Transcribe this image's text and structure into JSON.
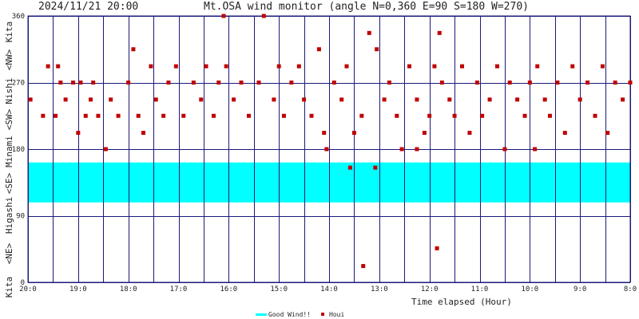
{
  "header": {
    "datetime": "2024/11/21 20:00",
    "title": "Mt.OSA wind monitor (angle N=0,360 E=90 S=180 W=270)"
  },
  "left_labels": [
    "Kita",
    "<NW>",
    "Nishi",
    "<SW>",
    "Minami",
    "<SE>",
    "Higashi",
    "<NE>",
    "Kita"
  ],
  "chart_data": {
    "type": "scatter",
    "title": "Mt.OSA wind monitor (angle N=0,360 E=90 S=180 W=270)",
    "xlabel": "Time elapsed (Hour)",
    "ylabel": "",
    "xlim": [
      0,
      12
    ],
    "ylim": [
      0,
      360
    ],
    "x_ticks": [
      {
        "x": 0,
        "label": "20:0"
      },
      {
        "x": 1,
        "label": "19:0"
      },
      {
        "x": 2,
        "label": "18:0"
      },
      {
        "x": 3,
        "label": "17:0"
      },
      {
        "x": 4,
        "label": "16:0"
      },
      {
        "x": 5,
        "label": "15:0"
      },
      {
        "x": 6,
        "label": "14:0"
      },
      {
        "x": 7,
        "label": "13:0"
      },
      {
        "x": 8,
        "label": "12:0"
      },
      {
        "x": 9,
        "label": "11:0"
      },
      {
        "x": 10,
        "label": "10:0"
      },
      {
        "x": 11,
        "label": "9:0"
      },
      {
        "x": 12,
        "label": "8:0"
      }
    ],
    "y_ticks": [
      0,
      90,
      180,
      270,
      360
    ],
    "grid": true,
    "good_wind_band": [
      108,
      162
    ],
    "colors": {
      "good_wind": "#00ffff",
      "houi": "#c00000",
      "grid": "#1a1a7a"
    },
    "legend": {
      "placement": "bottom-center",
      "entries": [
        "Good Wind!!",
        "Houi"
      ]
    },
    "series": [
      {
        "name": "Houi",
        "points": [
          [
            0.05,
            247
          ],
          [
            0.3,
            225
          ],
          [
            0.4,
            292
          ],
          [
            0.55,
            225
          ],
          [
            0.6,
            292
          ],
          [
            0.65,
            270
          ],
          [
            0.75,
            247
          ],
          [
            0.9,
            270
          ],
          [
            1.0,
            202
          ],
          [
            1.05,
            270
          ],
          [
            1.15,
            225
          ],
          [
            1.25,
            247
          ],
          [
            1.3,
            270
          ],
          [
            1.4,
            225
          ],
          [
            1.55,
            180
          ],
          [
            1.65,
            247
          ],
          [
            1.8,
            225
          ],
          [
            2.0,
            270
          ],
          [
            2.1,
            315
          ],
          [
            2.2,
            225
          ],
          [
            2.3,
            202
          ],
          [
            2.45,
            292
          ],
          [
            2.55,
            247
          ],
          [
            2.7,
            225
          ],
          [
            2.8,
            270
          ],
          [
            2.95,
            292
          ],
          [
            3.1,
            225
          ],
          [
            3.3,
            270
          ],
          [
            3.45,
            247
          ],
          [
            3.55,
            292
          ],
          [
            3.7,
            225
          ],
          [
            3.8,
            270
          ],
          [
            3.95,
            292
          ],
          [
            4.1,
            247
          ],
          [
            4.25,
            270
          ],
          [
            4.4,
            225
          ],
          [
            4.6,
            270
          ],
          [
            4.7,
            360
          ],
          [
            4.9,
            247
          ],
          [
            5.0,
            292
          ],
          [
            5.1,
            225
          ],
          [
            5.25,
            270
          ],
          [
            5.4,
            292
          ],
          [
            5.5,
            247
          ],
          [
            5.65,
            225
          ],
          [
            5.8,
            315
          ],
          [
            5.9,
            202
          ],
          [
            5.95,
            180
          ],
          [
            6.1,
            270
          ],
          [
            6.25,
            247
          ],
          [
            6.35,
            292
          ],
          [
            6.5,
            202
          ],
          [
            6.65,
            225
          ],
          [
            6.8,
            337
          ],
          [
            6.95,
            315
          ],
          [
            7.1,
            247
          ],
          [
            7.2,
            270
          ],
          [
            7.35,
            225
          ],
          [
            7.45,
            180
          ],
          [
            7.6,
            292
          ],
          [
            7.75,
            247
          ],
          [
            7.9,
            202
          ],
          [
            8.0,
            225
          ],
          [
            8.1,
            292
          ],
          [
            8.25,
            270
          ],
          [
            8.4,
            247
          ],
          [
            8.5,
            225
          ],
          [
            8.65,
            292
          ],
          [
            8.8,
            202
          ],
          [
            8.95,
            270
          ],
          [
            9.05,
            225
          ],
          [
            9.2,
            247
          ],
          [
            9.35,
            292
          ],
          [
            9.5,
            180
          ],
          [
            9.6,
            270
          ],
          [
            9.75,
            247
          ],
          [
            9.9,
            225
          ],
          [
            10.0,
            270
          ],
          [
            10.15,
            292
          ],
          [
            10.3,
            247
          ],
          [
            10.4,
            225
          ],
          [
            10.55,
            270
          ],
          [
            10.7,
            202
          ],
          [
            10.85,
            292
          ],
          [
            11.0,
            247
          ],
          [
            11.15,
            270
          ],
          [
            11.3,
            225
          ],
          [
            11.45,
            292
          ],
          [
            11.55,
            202
          ],
          [
            11.7,
            270
          ],
          [
            11.85,
            247
          ],
          [
            12.0,
            270
          ],
          [
            3.9,
            360
          ],
          [
            6.42,
            155
          ],
          [
            6.92,
            155
          ],
          [
            6.68,
            22
          ],
          [
            8.15,
            46
          ],
          [
            8.2,
            337
          ],
          [
            10.1,
            180
          ],
          [
            7.75,
            180
          ]
        ]
      }
    ]
  }
}
